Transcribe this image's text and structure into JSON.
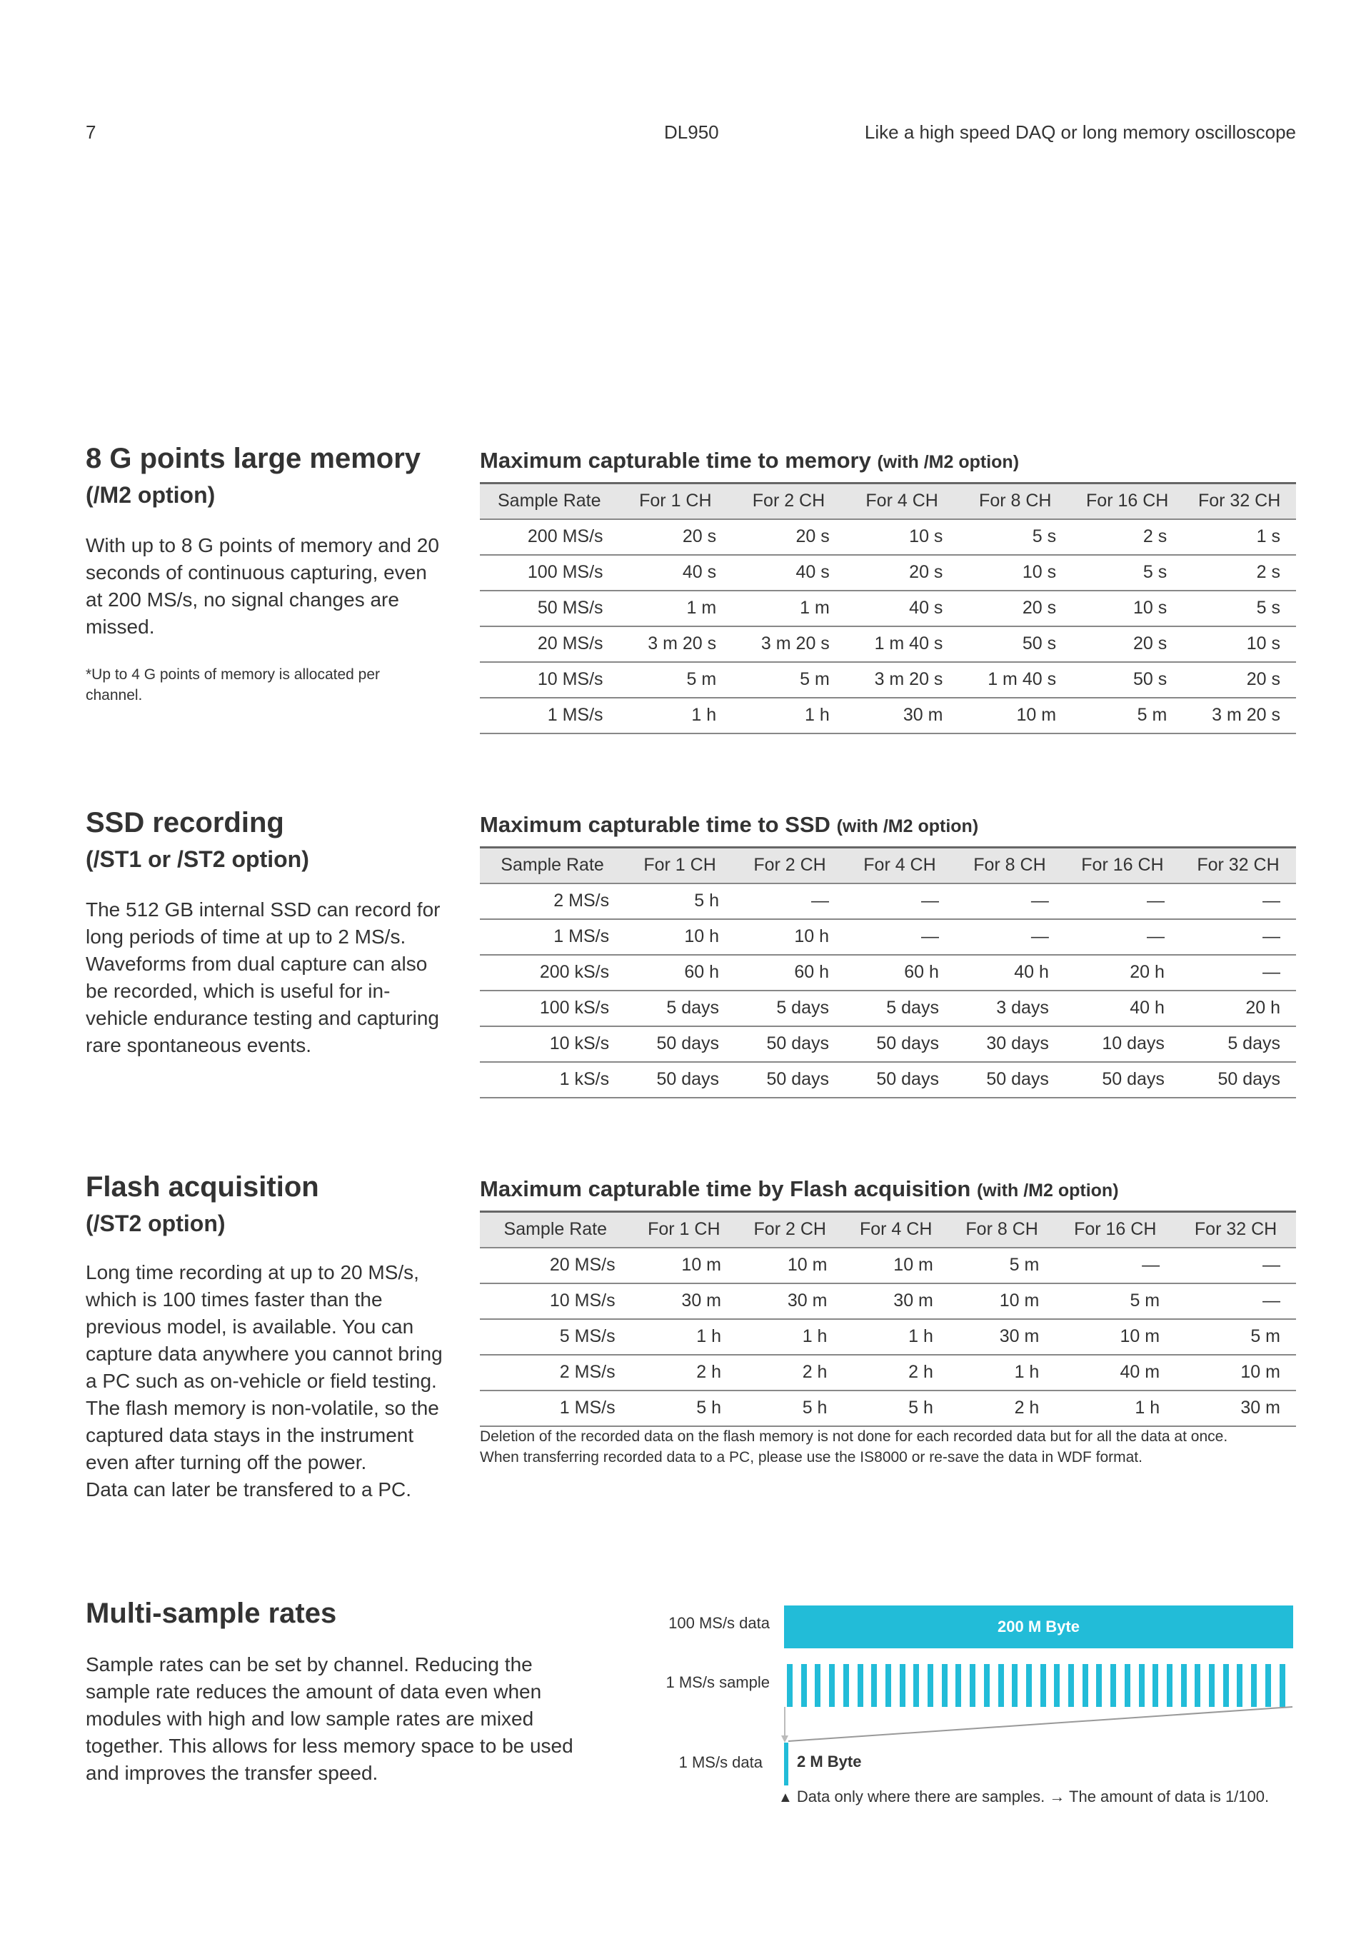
{
  "header": {
    "page_number": "7",
    "product": "DL950",
    "tagline": "Like a high speed DAQ or long memory oscilloscope"
  },
  "columns": [
    "Sample Rate",
    "For 1 CH",
    "For 2 CH",
    "For 4 CH",
    "For 8 CH",
    "For 16 CH",
    "For 32 CH"
  ],
  "memory": {
    "heading": "8 G points large memory",
    "subheading": "(/M2 option)",
    "body": "With up to 8 G points of memory and 20 seconds of continuous capturing, even at 200 MS/s, no signal changes are missed.",
    "note": "*Up to 4 G points of memory is allocated per channel.",
    "table_title": "Maximum capturable time to memory",
    "table_title_suffix": "(with /M2 option)",
    "rows": [
      [
        "200 MS/s",
        "20 s",
        "20 s",
        "10 s",
        "5 s",
        "2 s",
        "1 s"
      ],
      [
        "100 MS/s",
        "40 s",
        "40 s",
        "20 s",
        "10 s",
        "5 s",
        "2 s"
      ],
      [
        "50 MS/s",
        "1 m",
        "1 m",
        "40 s",
        "20 s",
        "10 s",
        "5 s"
      ],
      [
        "20 MS/s",
        "3 m 20 s",
        "3 m 20 s",
        "1 m 40 s",
        "50 s",
        "20 s",
        "10 s"
      ],
      [
        "10 MS/s",
        "5 m",
        "5 m",
        "3 m 20 s",
        "1 m 40 s",
        "50 s",
        "20 s"
      ],
      [
        "1 MS/s",
        "1 h",
        "1 h",
        "30 m",
        "10 m",
        "5 m",
        "3 m 20 s"
      ]
    ]
  },
  "ssd": {
    "heading": "SSD recording",
    "subheading": "(/ST1 or /ST2 option)",
    "body": "The 512 GB internal SSD can record for long periods of time at up to 2 MS/s. Waveforms from dual capture can also be recorded, which is useful for in-vehicle endurance testing and capturing rare spontaneous events.",
    "table_title": "Maximum capturable time to SSD",
    "table_title_suffix": "(with /M2 option)",
    "rows": [
      [
        "2 MS/s",
        "5 h",
        "—",
        "—",
        "—",
        "—",
        "—"
      ],
      [
        "1 MS/s",
        "10 h",
        "10 h",
        "—",
        "—",
        "—",
        "—"
      ],
      [
        "200 kS/s",
        "60 h",
        "60 h",
        "60 h",
        "40 h",
        "20 h",
        "—"
      ],
      [
        "100 kS/s",
        "5 days",
        "5 days",
        "5 days",
        "3 days",
        "40 h",
        "20 h"
      ],
      [
        "10 kS/s",
        "50 days",
        "50 days",
        "50 days",
        "30 days",
        "10 days",
        "5 days"
      ],
      [
        "1 kS/s",
        "50 days",
        "50 days",
        "50 days",
        "50 days",
        "50 days",
        "50 days"
      ]
    ]
  },
  "flash": {
    "heading": "Flash acquisition",
    "subheading": "(/ST2 option)",
    "body": "Long time recording at up to 20 MS/s, which is 100 times faster than the previous model, is available. You can capture data anywhere you cannot bring a PC such as on-vehicle or field testing. The flash memory is non-volatile, so the captured data stays in the instrument even after turning off the power.",
    "body2": "Data can later be transfered to a PC.",
    "table_title": "Maximum capturable time by Flash acquisition",
    "table_title_suffix": "(with /M2 option)",
    "rows": [
      [
        "20 MS/s",
        "10 m",
        "10 m",
        "10 m",
        "5 m",
        "—",
        "—"
      ],
      [
        "10 MS/s",
        "30 m",
        "30 m",
        "30 m",
        "10 m",
        "5 m",
        "—"
      ],
      [
        "5 MS/s",
        "1 h",
        "1 h",
        "1 h",
        "30 m",
        "10 m",
        "5 m"
      ],
      [
        "2 MS/s",
        "2 h",
        "2 h",
        "2 h",
        "1 h",
        "40 m",
        "10 m"
      ],
      [
        "1 MS/s",
        "5 h",
        "5 h",
        "5 h",
        "2 h",
        "1 h",
        "30 m"
      ]
    ],
    "footnote1": "Deletion of the recorded data on the flash memory is not done for each recorded data but for all the data at once.",
    "footnote2": "When transferring recorded data to a PC, please use the IS8000 or re-save the data in WDF format."
  },
  "multi": {
    "heading": "Multi-sample rates",
    "body": "Sample rates can be set by channel. Reducing the sample rate reduces the amount of data even when modules with high and low sample rates are mixed together. This allows for less memory space to be used and improves the transfer speed.",
    "diagram": {
      "label_high": "100 MS/s data",
      "high_size": "200 M Byte",
      "label_sample": "1 MS/s sample",
      "label_low": "1 MS/s data",
      "low_size": "2 M Byte",
      "caption": "Data only where there are samples. → The amount of data is 1/100.",
      "accent": "#22bcd8"
    }
  }
}
